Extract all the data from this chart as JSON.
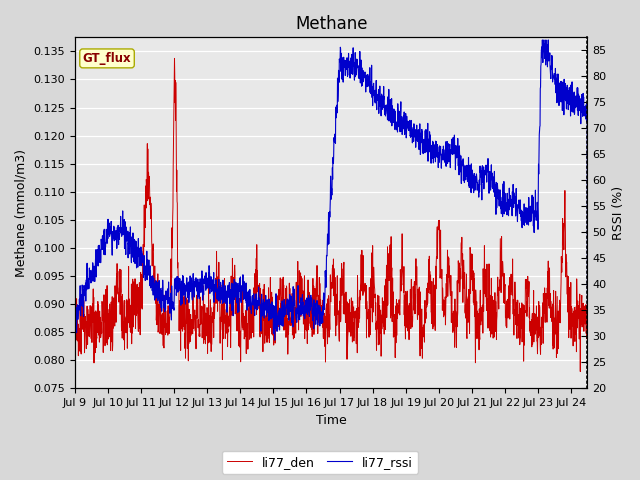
{
  "title": "Methane",
  "xlabel": "Time",
  "ylabel_left": "Methane (mmol/m3)",
  "ylabel_right": "RSSI (%)",
  "legend_label1": "li77_den",
  "legend_label2": "li77_rssi",
  "annotation_text": "GT_flux",
  "ylim_left": [
    0.075,
    0.1375
  ],
  "ylim_right": [
    20,
    87.5
  ],
  "xlim": [
    0,
    15.5
  ],
  "color_red": "#cc0000",
  "color_blue": "#0000cc",
  "bg_color": "#d8d8d8",
  "plot_bg": "#e8e8e8",
  "grid_color": "white",
  "xtick_labels": [
    "Jul 9",
    "Jul 10",
    "Jul 11",
    "Jul 12",
    "Jul 13",
    "Jul 14",
    "Jul 15",
    "Jul 16",
    "Jul 17",
    "Jul 18",
    "Jul 19",
    "Jul 20",
    "Jul 21",
    "Jul 22",
    "Jul 23",
    "Jul 24"
  ],
  "yticks_left": [
    0.075,
    0.08,
    0.085,
    0.09,
    0.095,
    0.1,
    0.105,
    0.11,
    0.115,
    0.12,
    0.125,
    0.13,
    0.135
  ],
  "yticks_right": [
    20,
    25,
    30,
    35,
    40,
    45,
    50,
    55,
    60,
    65,
    70,
    75,
    80,
    85
  ],
  "title_fontsize": 12,
  "axis_fontsize": 9,
  "tick_fontsize": 8
}
